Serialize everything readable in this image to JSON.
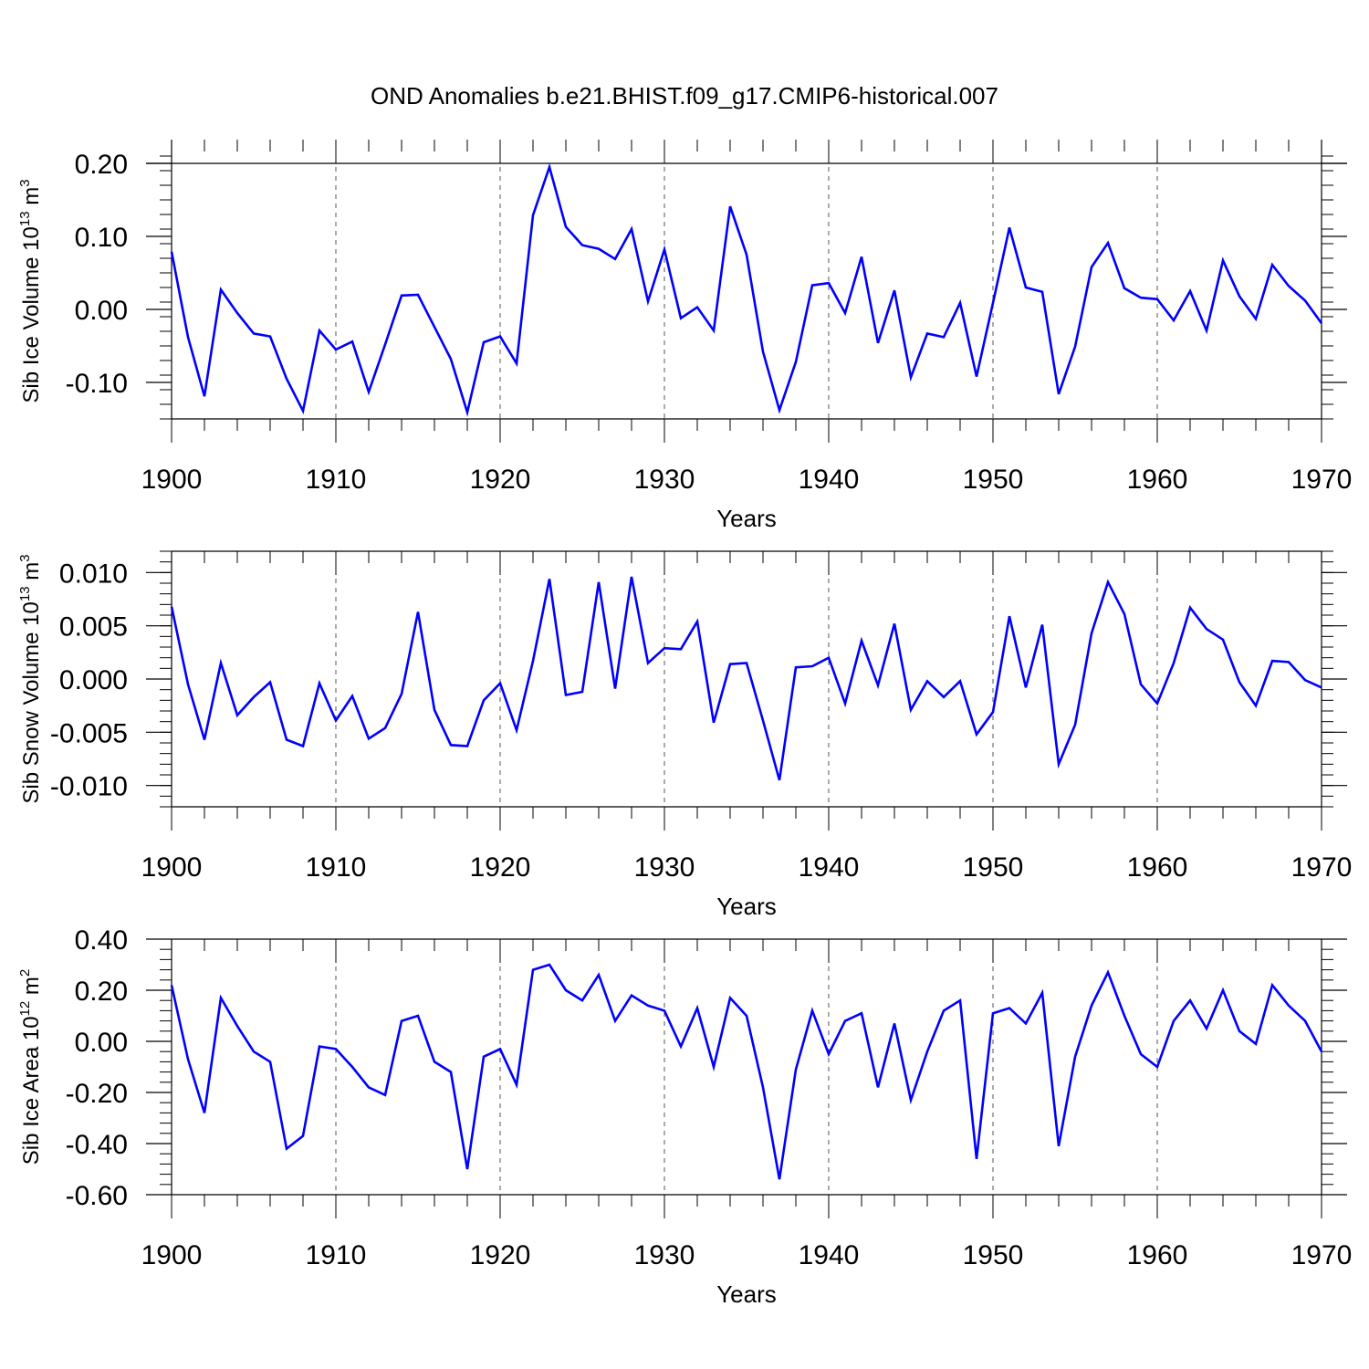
{
  "figure_title": "OND Anomalies b.e21.BHIST.f09_g17.CMIP6-historical.007",
  "colors": {
    "line": "#0000ff",
    "axis": "#000000",
    "grid": "#555555",
    "background": "#ffffff"
  },
  "chart_data": [
    {
      "type": "line",
      "id": "ice-volume",
      "title": "OND Anomalies b.e21.BHIST.f09_g17.CMIP6-historical.007",
      "xlabel": "Years",
      "ylabel": {
        "base": "Sib Ice Volume 10",
        "exp": "13",
        "unit": " m",
        "unit_exp": "3"
      },
      "xlim": [
        1900,
        1970
      ],
      "ylim": [
        -0.15,
        0.2
      ],
      "xticks": [
        "1900",
        "1910",
        "1920",
        "1930",
        "1940",
        "1950",
        "1960",
        "1970"
      ],
      "yticks": [
        "0.20",
        "0.10",
        "0.00",
        "-0.10"
      ],
      "ytick_values": [
        0.2,
        0.1,
        0.0,
        -0.1
      ],
      "grid": "vertical dashed at decades",
      "series": [
        {
          "name": "Sib Ice Volume",
          "x_start": 1900,
          "values": [
            0.079,
            -0.038,
            -0.119,
            0.027,
            -0.005,
            -0.033,
            -0.037,
            -0.095,
            -0.139,
            -0.029,
            -0.055,
            -0.044,
            -0.113,
            -0.048,
            0.019,
            0.02,
            -0.024,
            -0.068,
            -0.141,
            -0.045,
            -0.037,
            -0.074,
            0.129,
            0.195,
            0.113,
            0.088,
            0.083,
            0.069,
            0.11,
            0.011,
            0.082,
            -0.012,
            0.003,
            -0.029,
            0.141,
            0.075,
            -0.058,
            -0.138,
            -0.072,
            0.033,
            0.036,
            -0.005,
            0.072,
            -0.046,
            0.026,
            -0.093,
            -0.033,
            -0.038,
            0.009,
            -0.092,
            0.009,
            0.112,
            0.03,
            0.024,
            -0.116,
            -0.051,
            0.058,
            0.091,
            0.029,
            0.016,
            0.014,
            -0.015,
            0.025,
            -0.029,
            0.067,
            0.018,
            -0.013,
            0.061,
            0.032,
            0.012,
            -0.019
          ]
        }
      ]
    },
    {
      "type": "line",
      "id": "snow-volume",
      "title": "",
      "xlabel": "Years",
      "ylabel": {
        "base": "Sib Snow Volume 10",
        "exp": "13",
        "unit": " m",
        "unit_exp": "3"
      },
      "xlim": [
        1900,
        1970
      ],
      "ylim": [
        -0.012,
        0.012
      ],
      "xticks": [
        "1900",
        "1910",
        "1920",
        "1930",
        "1940",
        "1950",
        "1960",
        "1970"
      ],
      "yticks": [
        "0.010",
        "0.005",
        "0.000",
        "-0.005",
        "-0.010"
      ],
      "ytick_values": [
        0.01,
        0.005,
        0.0,
        -0.005,
        -0.01
      ],
      "grid": "vertical dashed at decades",
      "series": [
        {
          "name": "Sib Snow Volume",
          "x_start": 1900,
          "values": [
            0.0068,
            -0.0005,
            -0.0057,
            0.0015,
            -0.0034,
            -0.0017,
            -0.0003,
            -0.0057,
            -0.0063,
            -0.0004,
            -0.0039,
            -0.0016,
            -0.0056,
            -0.0046,
            -0.0014,
            0.0063,
            -0.0029,
            -0.0062,
            -0.0063,
            -0.002,
            -0.0004,
            -0.0048,
            0.0017,
            0.0094,
            -0.0015,
            -0.0012,
            0.0091,
            -0.0009,
            0.0096,
            0.0015,
            0.0029,
            0.0028,
            0.0054,
            -0.0041,
            0.0014,
            0.0015,
            -0.0039,
            -0.0095,
            0.0011,
            0.0012,
            0.002,
            -0.0023,
            0.0036,
            -0.0006,
            0.0052,
            -0.0029,
            -0.0002,
            -0.0017,
            -0.0002,
            -0.0052,
            -0.0031,
            0.0059,
            -0.0008,
            0.0051,
            -0.008,
            -0.0043,
            0.0043,
            0.0091,
            0.0061,
            -0.0005,
            -0.0023,
            0.0015,
            0.0067,
            0.0047,
            0.0037,
            -0.0003,
            -0.0025,
            0.0017,
            0.0016,
            -0.0001,
            -0.0008
          ]
        }
      ]
    },
    {
      "type": "line",
      "id": "ice-area",
      "title": "",
      "xlabel": "Years",
      "ylabel": {
        "base": "Sib Ice Area 10",
        "exp": "12",
        "unit": " m",
        "unit_exp": "2"
      },
      "xlim": [
        1900,
        1970
      ],
      "ylim": [
        -0.6,
        0.4
      ],
      "xticks": [
        "1900",
        "1910",
        "1920",
        "1930",
        "1940",
        "1950",
        "1960",
        "1970"
      ],
      "yticks": [
        "0.40",
        "0.20",
        "0.00",
        "-0.20",
        "-0.40",
        "-0.60"
      ],
      "ytick_values": [
        0.4,
        0.2,
        0.0,
        -0.2,
        -0.4,
        -0.6
      ],
      "grid": "vertical dashed at decades",
      "series": [
        {
          "name": "Sib Ice Area",
          "x_start": 1900,
          "values": [
            0.22,
            -0.07,
            -0.28,
            0.17,
            0.06,
            -0.04,
            -0.08,
            -0.42,
            -0.37,
            -0.02,
            -0.03,
            -0.1,
            -0.18,
            -0.21,
            0.08,
            0.1,
            -0.08,
            -0.12,
            -0.5,
            -0.06,
            -0.03,
            -0.17,
            0.28,
            0.3,
            0.2,
            0.16,
            0.26,
            0.08,
            0.18,
            0.14,
            0.12,
            -0.02,
            0.13,
            -0.1,
            0.17,
            0.1,
            -0.18,
            -0.54,
            -0.11,
            0.12,
            -0.05,
            0.08,
            0.11,
            -0.18,
            0.07,
            -0.23,
            -0.04,
            0.12,
            0.16,
            -0.46,
            0.11,
            0.13,
            0.07,
            0.19,
            -0.41,
            -0.06,
            0.14,
            0.27,
            0.1,
            -0.05,
            -0.1,
            0.08,
            0.16,
            0.05,
            0.2,
            0.04,
            -0.01,
            0.22,
            0.14,
            0.08,
            -0.04
          ]
        }
      ]
    }
  ]
}
